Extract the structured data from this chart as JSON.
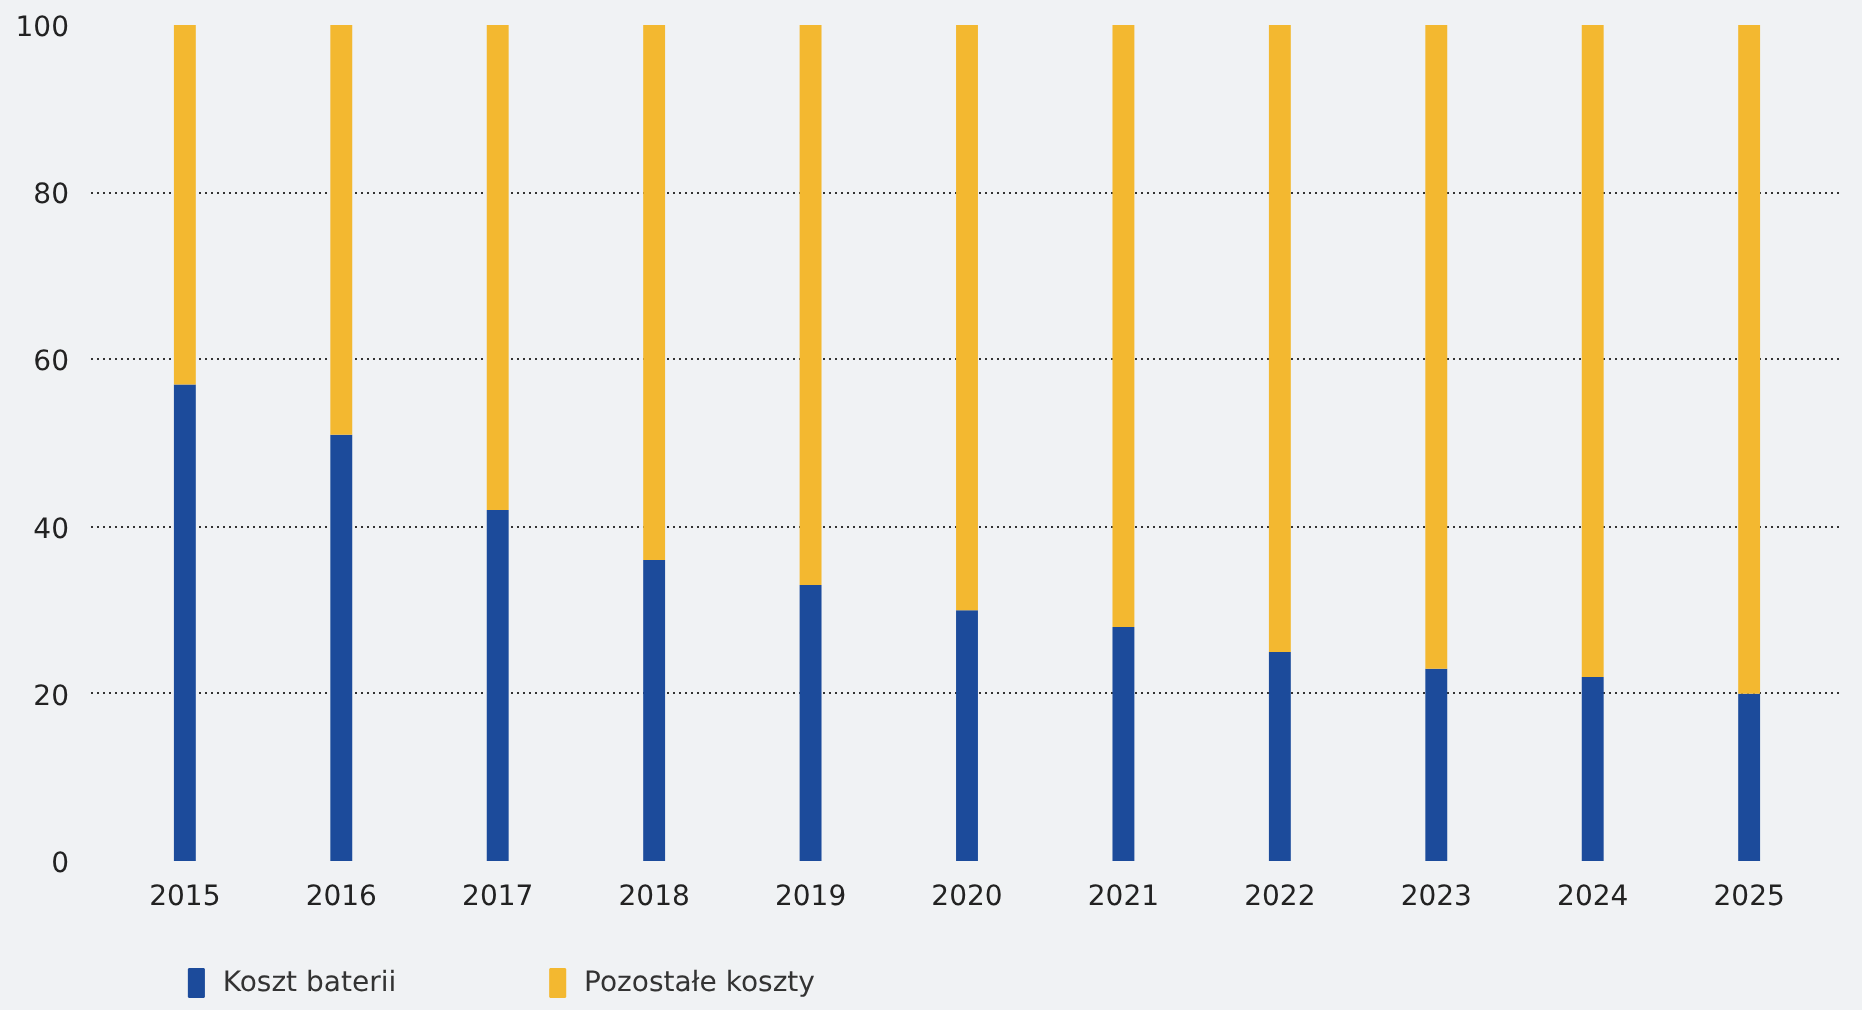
{
  "chart_data": {
    "type": "bar",
    "stacked": true,
    "categories": [
      "2015",
      "2016",
      "2017",
      "2018",
      "2019",
      "2020",
      "2021",
      "2022",
      "2023",
      "2024",
      "2025"
    ],
    "series": [
      {
        "name": "Koszt baterii",
        "color": "#1c4b9b",
        "values": [
          57,
          51,
          42,
          36,
          33,
          30,
          28,
          25,
          23,
          22,
          20
        ]
      },
      {
        "name": "Pozostałe koszty",
        "color": "#f3b830",
        "values": [
          43,
          49,
          58,
          64,
          67,
          70,
          72,
          75,
          77,
          78,
          80
        ]
      }
    ],
    "ylim": [
      0,
      100
    ],
    "yticks": [
      0,
      20,
      40,
      60,
      80,
      100
    ],
    "grid": "y",
    "legend": "bottom left"
  }
}
